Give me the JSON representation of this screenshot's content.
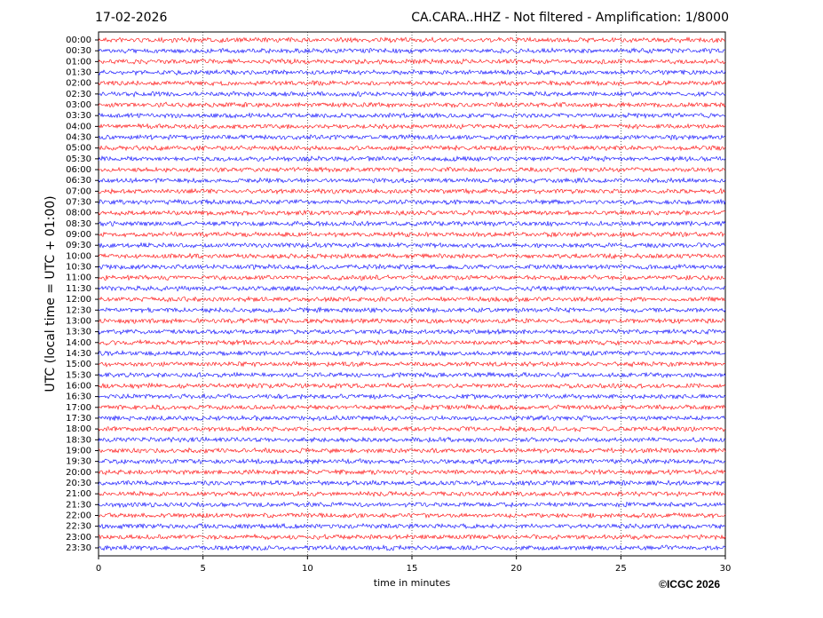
{
  "chart_data": {
    "type": "helicorder",
    "date": "17-02-2026",
    "title": "CA.CARA..HHZ - Not filtered - Amplification: 1/8000",
    "y_label": "UTC (local time = UTC + 01:00)",
    "x_label": "time in minutes",
    "credit": "©ICGC 2026",
    "categories": [
      "00:00",
      "00:30",
      "01:00",
      "01:30",
      "02:00",
      "02:30",
      "03:00",
      "03:30",
      "04:00",
      "04:30",
      "05:00",
      "05:30",
      "06:00",
      "06:30",
      "07:00",
      "07:30",
      "08:00",
      "08:30",
      "09:00",
      "09:30",
      "10:00",
      "10:30",
      "11:00",
      "11:30",
      "12:00",
      "12:30",
      "13:00",
      "13:30",
      "14:00",
      "14:30",
      "15:00",
      "15:30",
      "16:00",
      "16:30",
      "17:00",
      "17:30",
      "18:00",
      "18:30",
      "19:00",
      "19:30",
      "20:00",
      "20:30",
      "21:00",
      "21:30",
      "22:00",
      "22:30",
      "23:00",
      "23:30"
    ],
    "colors": [
      "#ff0000",
      "#0000ff"
    ],
    "xlim": [
      0,
      30
    ],
    "xticks": [
      0,
      5,
      10,
      15,
      20,
      25,
      30
    ],
    "grid": true
  }
}
